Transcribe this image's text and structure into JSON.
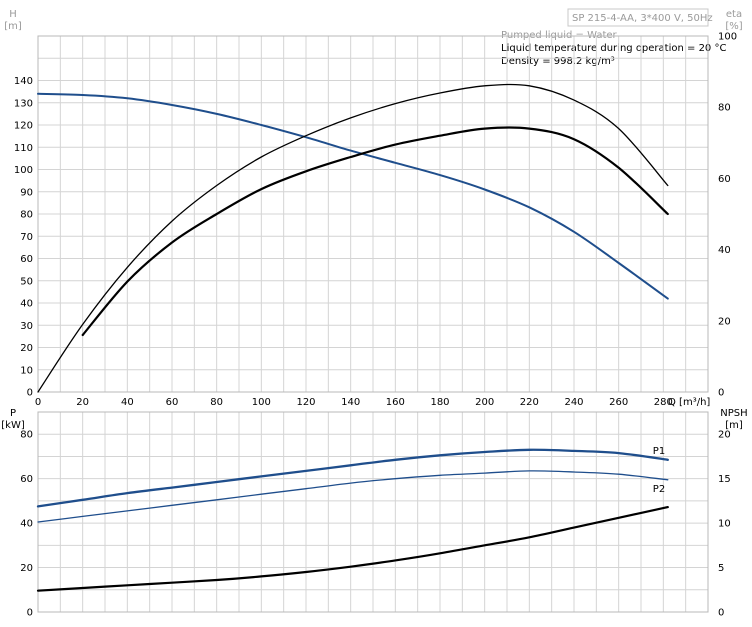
{
  "header": {
    "pump_label": "SP 215-4-AA, 3*400 V, 50Hz",
    "notes": [
      "Pumped liquid = Water",
      "Liquid temperature during operation = 20 °C",
      "Density = 998.2 kg/m³"
    ]
  },
  "colors": {
    "accent": "#1f4e8c",
    "curve_black": "#000000",
    "grid": "#d4d4d4"
  },
  "chart_data": [
    {
      "type": "line",
      "panel": "upper",
      "x_label": "Q [m³/h]",
      "y_left_label": [
        "H",
        "[m]"
      ],
      "y_right_label": [
        "eta",
        "[%]"
      ],
      "x_ticks": [
        0,
        20,
        40,
        60,
        80,
        100,
        120,
        140,
        160,
        180,
        200,
        220,
        240,
        260,
        280
      ],
      "xlim": [
        0,
        300
      ],
      "y_left_ticks": [
        0,
        10,
        20,
        30,
        40,
        50,
        60,
        70,
        80,
        90,
        100,
        110,
        120,
        130,
        140
      ],
      "ylim_left": [
        0,
        160
      ],
      "y_right_ticks": [
        0,
        20,
        40,
        60,
        80,
        100
      ],
      "ylim_right": [
        0,
        100
      ],
      "grid": true,
      "series": [
        {
          "key": "H",
          "axis": "left",
          "color": "#1f4e8c",
          "width": 2,
          "x": [
            0,
            20,
            40,
            60,
            80,
            100,
            120,
            140,
            160,
            180,
            200,
            220,
            240,
            260,
            282
          ],
          "y": [
            134,
            133.5,
            132,
            129,
            125,
            120,
            114.5,
            108.5,
            103,
            97.5,
            91,
            83,
            72,
            58,
            42
          ]
        },
        {
          "key": "eta_upper",
          "axis": "right",
          "color": "#000000",
          "width": 1.3,
          "x": [
            0,
            20,
            40,
            60,
            80,
            100,
            120,
            140,
            160,
            180,
            200,
            220,
            240,
            260,
            282
          ],
          "y": [
            0,
            19,
            35,
            48,
            58,
            66,
            72,
            77,
            81,
            84,
            86,
            86,
            82,
            74,
            58
          ]
        },
        {
          "key": "eta_lower",
          "axis": "right",
          "color": "#000000",
          "width": 2.2,
          "x": [
            20,
            40,
            60,
            80,
            100,
            120,
            140,
            160,
            180,
            200,
            220,
            240,
            260,
            282
          ],
          "y": [
            16,
            31,
            42,
            50,
            57,
            62,
            66,
            69.5,
            72,
            74,
            74,
            71,
            63,
            50
          ]
        }
      ]
    },
    {
      "type": "line",
      "panel": "lower",
      "y_left_label": [
        "P",
        "[kW]"
      ],
      "y_right_label": [
        "NPSH",
        "[m]"
      ],
      "x_ticks": [
        0,
        20,
        40,
        60,
        80,
        100,
        120,
        140,
        160,
        180,
        200,
        220,
        240,
        260,
        280
      ],
      "xlim": [
        0,
        300
      ],
      "y_left_ticks": [
        0,
        20,
        40,
        60,
        80
      ],
      "ylim_left": [
        0,
        90
      ],
      "y_right_ticks": [
        0,
        5,
        10,
        15,
        20
      ],
      "ylim_right": [
        0,
        22.5
      ],
      "grid": true,
      "series": [
        {
          "name": "P1",
          "axis": "left",
          "color": "#1f4e8c",
          "width": 2.3,
          "x": [
            0,
            20,
            40,
            60,
            80,
            100,
            120,
            140,
            160,
            180,
            200,
            220,
            240,
            260,
            282
          ],
          "y": [
            47.5,
            50.5,
            53.5,
            56,
            58.5,
            61,
            63.5,
            66,
            68.5,
            70.5,
            72,
            73,
            72.5,
            71.5,
            68.5
          ]
        },
        {
          "name": "P2",
          "axis": "left",
          "color": "#1f4e8c",
          "width": 1.3,
          "x": [
            0,
            20,
            40,
            60,
            80,
            100,
            120,
            140,
            160,
            180,
            200,
            220,
            240,
            260,
            282
          ],
          "y": [
            40.5,
            43,
            45.5,
            48,
            50.5,
            53,
            55.5,
            58,
            60,
            61.5,
            62.5,
            63.5,
            63,
            62,
            59.5
          ]
        },
        {
          "key": "NPSH",
          "axis": "right",
          "color": "#000000",
          "width": 2.2,
          "x": [
            0,
            20,
            40,
            60,
            80,
            100,
            120,
            140,
            160,
            180,
            200,
            220,
            240,
            260,
            282
          ],
          "y": [
            2.4,
            2.7,
            3.0,
            3.3,
            3.6,
            4.0,
            4.5,
            5.1,
            5.8,
            6.6,
            7.5,
            8.4,
            9.5,
            10.6,
            11.8
          ]
        }
      ]
    }
  ]
}
